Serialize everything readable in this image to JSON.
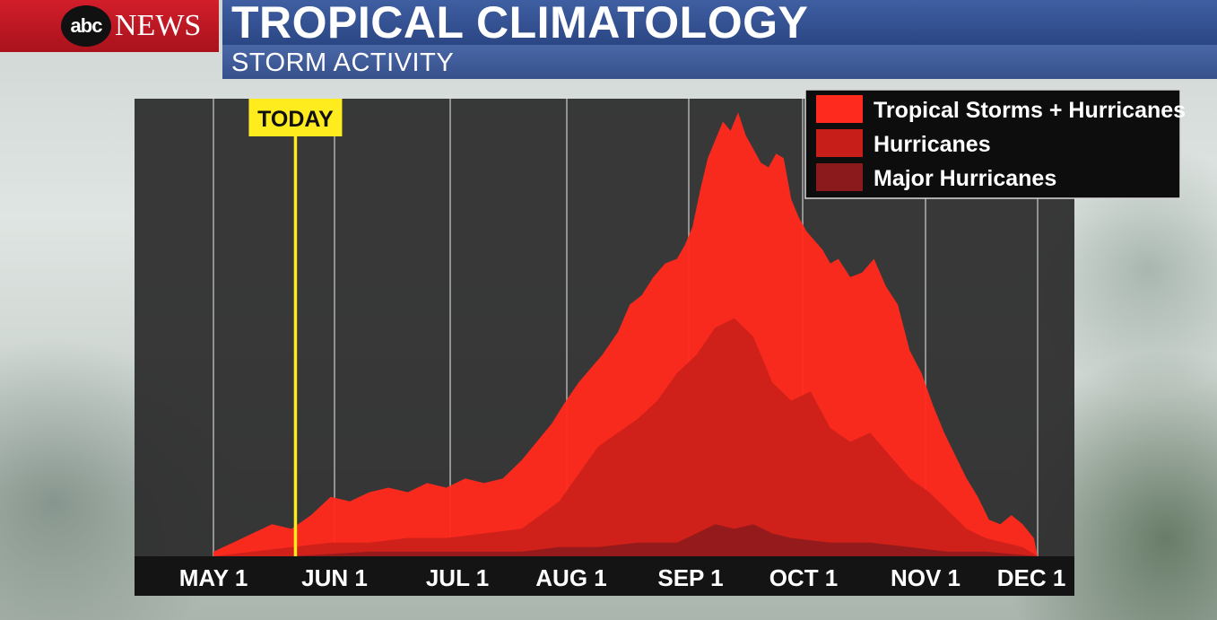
{
  "header": {
    "logo_abc": "abc",
    "logo_news": "NEWS",
    "title": "TROPICAL CLIMATOLOGY",
    "subtitle": "STORM ACTIVITY"
  },
  "colors": {
    "tropical_storms": "#ff2a1e",
    "hurricanes": "#c81e1a",
    "major_hurricanes": "#8b1a1c",
    "today_marker": "#ffec1f",
    "plot_bg": "#2b2b2b",
    "axis_bg": "#141414"
  },
  "chart_data": {
    "type": "area",
    "x_tick_labels": [
      "MAY 1",
      "JUN 1",
      "JUL 1",
      "AUG 1",
      "SEP 1",
      "OCT 1",
      "NOV 1",
      "DEC 1"
    ],
    "today_label": "TODAY",
    "today_day_offset": 21,
    "x_unit": "days after May 1",
    "y_axis_shown": false,
    "legend": {
      "position": "top-right",
      "entries": [
        "Tropical Storms + Hurricanes",
        "Hurricanes",
        "Major Hurricanes"
      ]
    },
    "series": [
      {
        "name": "Tropical Storms + Hurricanes",
        "x": [
          0,
          5,
          10,
          15,
          20,
          25,
          30,
          35,
          40,
          45,
          50,
          55,
          60,
          65,
          70,
          75,
          80,
          85,
          88,
          91,
          95,
          98,
          101,
          105,
          108,
          111,
          114,
          117,
          120,
          122,
          124,
          126,
          128,
          130,
          132,
          134,
          136,
          138,
          140,
          142,
          144,
          146,
          148,
          150,
          152,
          154,
          156,
          158,
          160,
          162,
          165,
          168,
          171,
          174,
          177,
          180,
          183,
          186,
          189,
          192,
          195,
          198,
          201,
          204,
          207,
          210,
          213,
          214
        ],
        "y": [
          1,
          3,
          5,
          7,
          6,
          9,
          13,
          12,
          14,
          15,
          14,
          16,
          15,
          17,
          16,
          17,
          21,
          26,
          29,
          33,
          38,
          41,
          44,
          49,
          55,
          57,
          61,
          64,
          65,
          68,
          72,
          80,
          87,
          91,
          95,
          93,
          97,
          92,
          89,
          86,
          85,
          88,
          87,
          78,
          74,
          71,
          69,
          67,
          64,
          65,
          61,
          62,
          65,
          59,
          55,
          45,
          40,
          33,
          27,
          22,
          17,
          13,
          8,
          7,
          9,
          7,
          4,
          0
        ]
      },
      {
        "name": "Hurricanes",
        "x": [
          0,
          10,
          20,
          30,
          40,
          50,
          60,
          70,
          80,
          85,
          90,
          95,
          100,
          105,
          110,
          115,
          120,
          125,
          130,
          135,
          140,
          145,
          150,
          155,
          160,
          165,
          170,
          175,
          180,
          185,
          190,
          195,
          200,
          205,
          210,
          214
        ],
        "y": [
          0,
          1,
          2,
          3,
          3,
          4,
          4,
          5,
          6,
          9,
          12,
          18,
          24,
          27,
          30,
          34,
          40,
          44,
          50,
          52,
          48,
          38,
          34,
          36,
          28,
          25,
          27,
          22,
          17,
          14,
          10,
          6,
          4,
          3,
          2,
          0
        ]
      },
      {
        "name": "Major Hurricanes",
        "x": [
          0,
          20,
          40,
          60,
          80,
          90,
          100,
          110,
          115,
          120,
          125,
          130,
          135,
          140,
          145,
          150,
          160,
          170,
          180,
          190,
          200,
          214
        ],
        "y": [
          0,
          0,
          1,
          1,
          1,
          2,
          2,
          3,
          3,
          3,
          5,
          7,
          6,
          7,
          5,
          4,
          3,
          3,
          2,
          1,
          1,
          0
        ]
      }
    ]
  }
}
